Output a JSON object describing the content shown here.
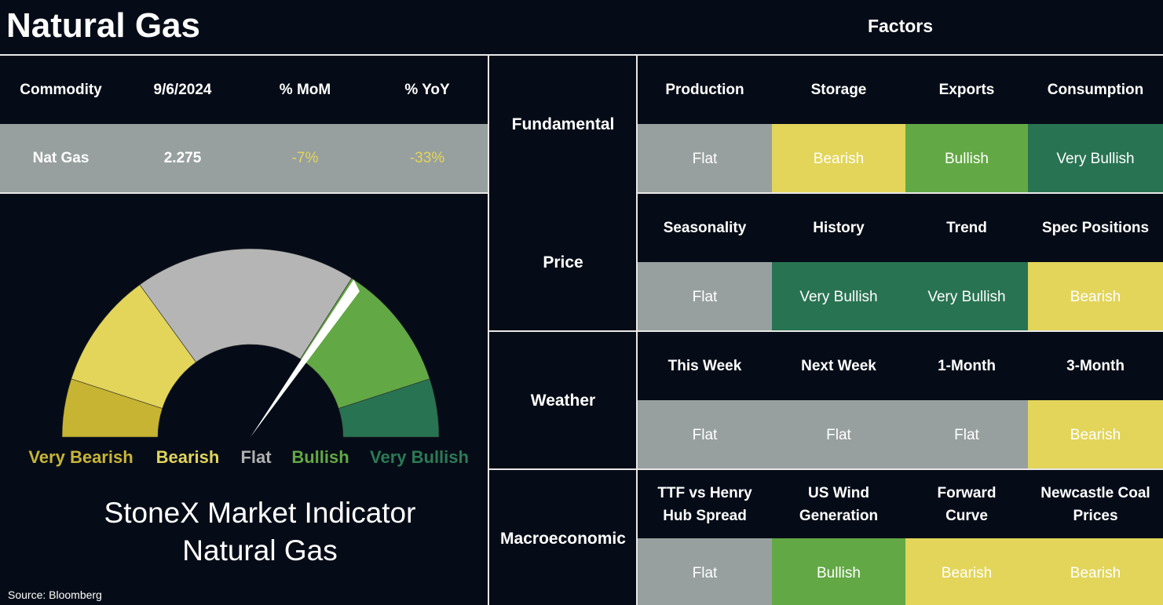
{
  "header": {
    "title": "Natural Gas",
    "factors_title": "Factors"
  },
  "summary": {
    "columns": [
      "Commodity",
      "9/6/2024",
      "% MoM",
      "% YoY"
    ],
    "row": [
      "Nat Gas",
      "2.275",
      "-7%",
      "-33%"
    ]
  },
  "gauge": {
    "segments": [
      {
        "label": "Very Bearish",
        "color": "#c6b432",
        "text_color": "#c8b535"
      },
      {
        "label": "Bearish",
        "color": "#e2d55a",
        "text_color": "#e2d55a"
      },
      {
        "label": "Flat",
        "color": "#b5b5b5",
        "text_color": "#b0b0b0"
      },
      {
        "label": "Bullish",
        "color": "#62a844",
        "text_color": "#62a844"
      },
      {
        "label": "Very Bullish",
        "color": "#287352",
        "text_color": "#2c7a55"
      }
    ],
    "caption": [
      "StoneX Market Indicator",
      "Natural Gas"
    ]
  },
  "source": "Source: Bloomberg",
  "factors": [
    {
      "group": "Fundamental",
      "items": [
        {
          "name": [
            "Production"
          ],
          "signal": "Flat",
          "color": "#98a09f"
        },
        {
          "name": [
            "Storage"
          ],
          "signal": "Bearish",
          "color": "#e2d55a"
        },
        {
          "name": [
            "Exports"
          ],
          "signal": "Bullish",
          "color": "#62a844"
        },
        {
          "name": [
            "Consumption"
          ],
          "signal": "Very Bullish",
          "color": "#287352"
        }
      ]
    },
    {
      "group": "Price",
      "items": [
        {
          "name": [
            "Seasonality"
          ],
          "signal": "Flat",
          "color": "#98a09f"
        },
        {
          "name": [
            "History"
          ],
          "signal": "Very Bullish",
          "color": "#287352"
        },
        {
          "name": [
            "Trend"
          ],
          "signal": "Very Bullish",
          "color": "#287352"
        },
        {
          "name": [
            "Spec Positions"
          ],
          "signal": "Bearish",
          "color": "#e2d55a"
        }
      ]
    },
    {
      "group": "Weather",
      "items": [
        {
          "name": [
            "This Week"
          ],
          "signal": "Flat",
          "color": "#98a09f"
        },
        {
          "name": [
            "Next Week"
          ],
          "signal": "Flat",
          "color": "#98a09f"
        },
        {
          "name": [
            "1-Month"
          ],
          "signal": "Flat",
          "color": "#98a09f"
        },
        {
          "name": [
            "3-Month"
          ],
          "signal": "Bearish",
          "color": "#e2d55a"
        }
      ]
    },
    {
      "group": "Macroeconomic",
      "items": [
        {
          "name": [
            "TTF vs Henry",
            "Hub Spread"
          ],
          "signal": "Flat",
          "color": "#98a09f"
        },
        {
          "name": [
            "US Wind",
            "Generation"
          ],
          "signal": "Bullish",
          "color": "#62a844"
        },
        {
          "name": [
            "Forward",
            "Curve"
          ],
          "signal": "Bearish",
          "color": "#e2d55a"
        },
        {
          "name": [
            "Newcastle Coal",
            "Prices"
          ],
          "signal": "Bearish",
          "color": "#e2d55a"
        }
      ]
    }
  ]
}
